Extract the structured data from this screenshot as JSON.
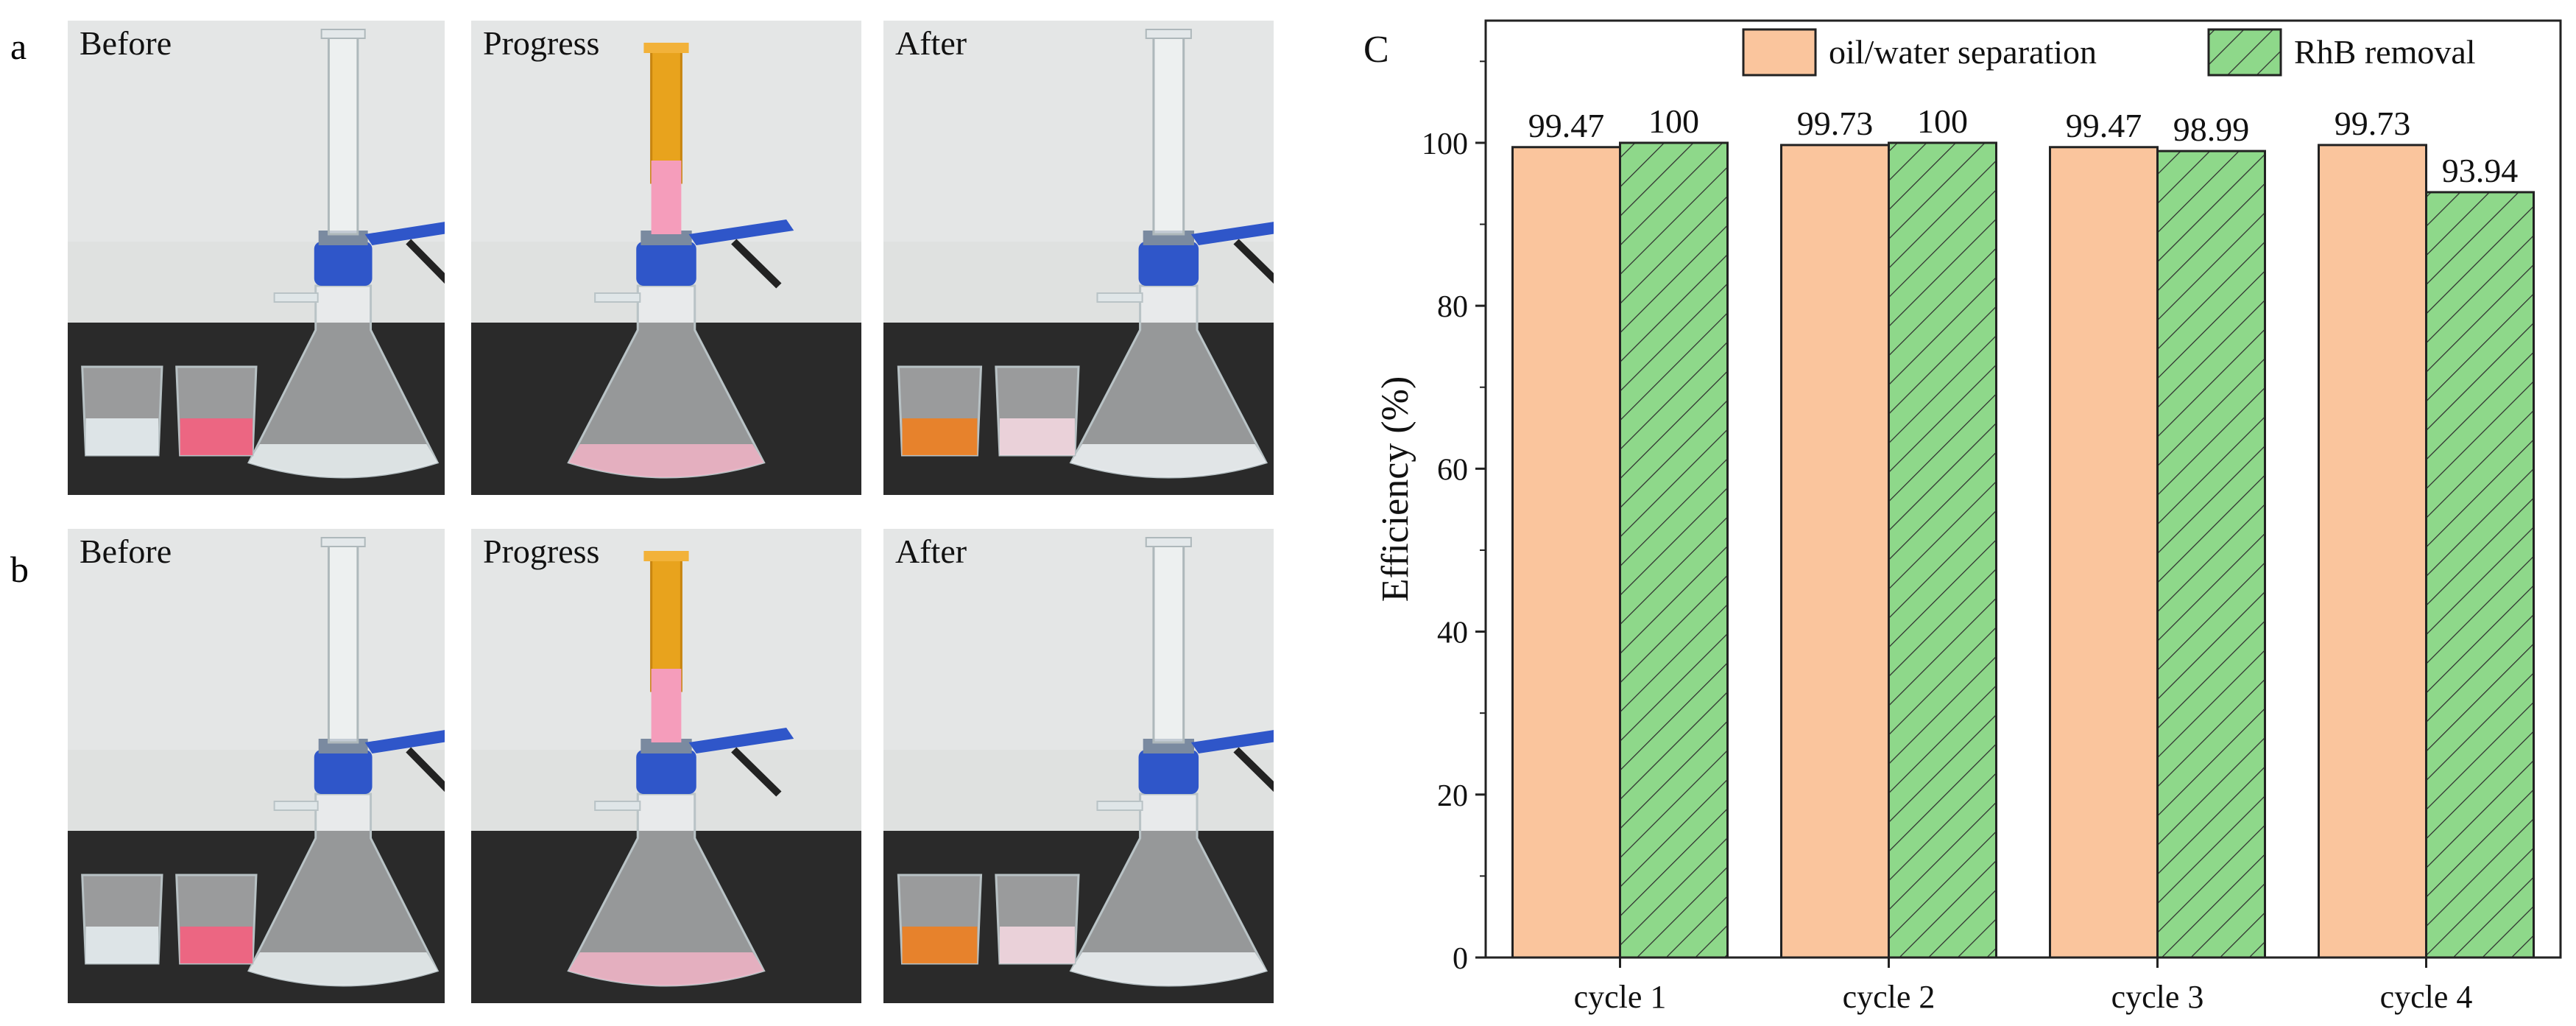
{
  "figure": {
    "panel_a_letter": "a",
    "panel_b_letter": "b",
    "panel_c_letter": "C",
    "panels": {
      "a": {
        "photos": [
          {
            "label": "Before"
          },
          {
            "label": "Progress"
          },
          {
            "label": "After"
          }
        ]
      },
      "b": {
        "photos": [
          {
            "label": "Before"
          },
          {
            "label": "Progress"
          },
          {
            "label": "After"
          }
        ]
      }
    }
  },
  "colors": {
    "oil_bar": "#FAC59D",
    "rhb_bar": "#8ED88A",
    "bench": "#2a2a2a",
    "wall": "#dfe1e0",
    "pink": "#f5607f",
    "orange": "#f08020",
    "clamp": "#2f56c9"
  },
  "chart_data": {
    "type": "bar",
    "categories": [
      "cycle 1",
      "cycle 2",
      "cycle 3",
      "cycle 4"
    ],
    "series": [
      {
        "name": "oil/water separation",
        "values": [
          99.47,
          99.73,
          99.47,
          99.73
        ],
        "labels": [
          "99.47",
          "99.73",
          "99.47",
          "99.73"
        ],
        "pattern": "solid"
      },
      {
        "name": "RhB removal",
        "values": [
          100,
          100,
          98.99,
          93.94
        ],
        "labels": [
          "100",
          "100",
          "98.99",
          "93.94"
        ],
        "pattern": "hatched"
      }
    ],
    "ylabel": "Efficiency (%)",
    "xlabel": "",
    "ylim": [
      0,
      115
    ],
    "yticks": [
      0,
      20,
      40,
      60,
      80,
      100
    ],
    "legend_position": "top",
    "grid": false
  }
}
